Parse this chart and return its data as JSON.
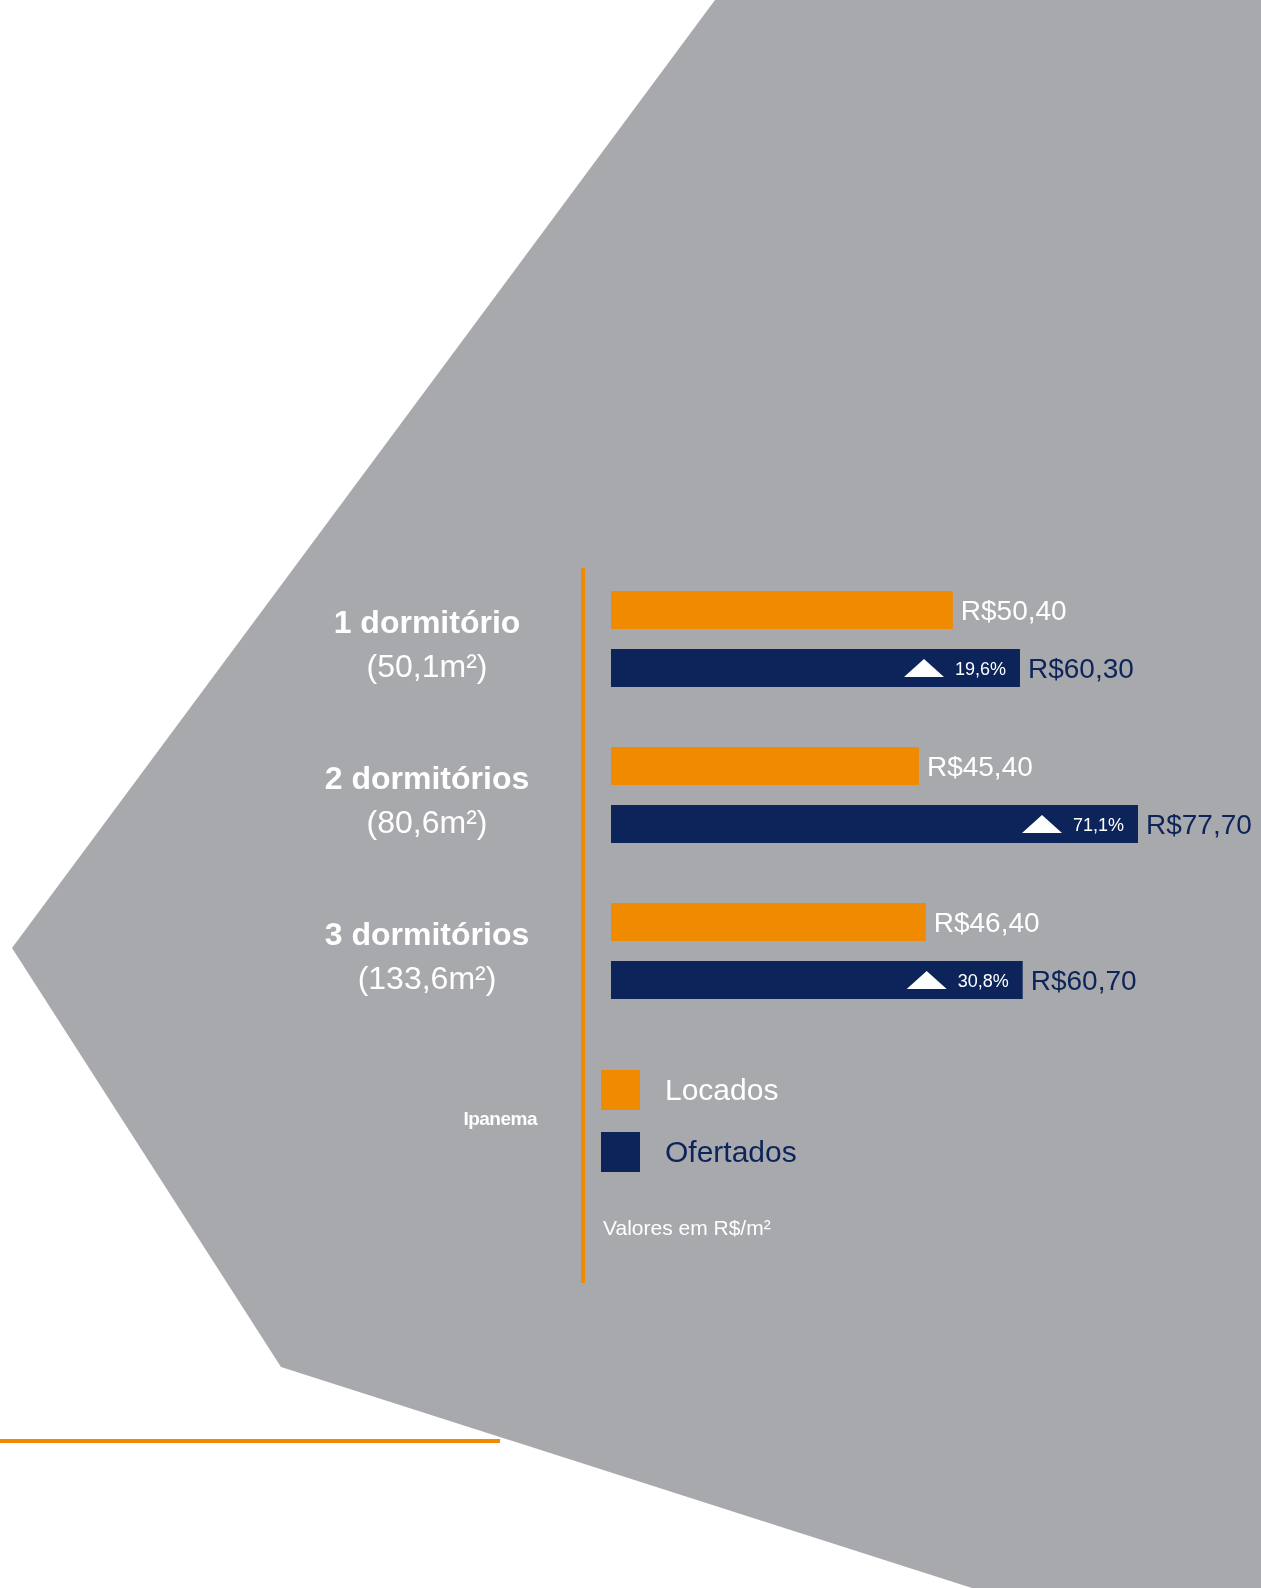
{
  "chart_data": {
    "type": "bar",
    "orientation": "horizontal",
    "categories": [
      "1 dormitório (50,1m²)",
      "2 dormitórios (80,6m²)",
      "3 dormitórios (133,6m²)"
    ],
    "series": [
      {
        "name": "Locados",
        "color": "#f08a00",
        "values": [
          50.4,
          45.4,
          46.4
        ],
        "value_labels": [
          "R$50,40",
          "R$45,40",
          "R$46,40"
        ]
      },
      {
        "name": "Ofertados",
        "color": "#0c2459",
        "values": [
          60.3,
          77.7,
          60.7
        ],
        "value_labels": [
          "R$60,30",
          "R$77,70",
          "R$60,70"
        ]
      }
    ],
    "annotations": [
      "19,6%",
      "71,1%",
      "30,8%",
      "Ipanema",
      "Valores em R$/m²"
    ],
    "legend": "bottom",
    "grid": false
  }
}
